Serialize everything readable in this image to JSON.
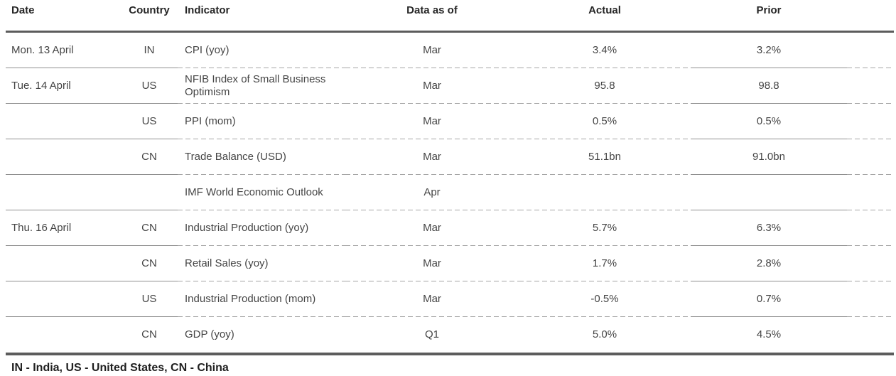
{
  "table": {
    "columns": [
      {
        "key": "date",
        "label": "Date"
      },
      {
        "key": "country",
        "label": "Country"
      },
      {
        "key": "indicator",
        "label": "Indicator"
      },
      {
        "key": "data_as_of",
        "label": "Data as of"
      },
      {
        "key": "actual",
        "label": "Actual"
      },
      {
        "key": "prior",
        "label": "Prior"
      }
    ],
    "rows": [
      {
        "date": "Mon. 13 April",
        "country": "IN",
        "indicator": "CPI (yoy)",
        "data_as_of": "Mar",
        "actual": "3.4%",
        "prior": "3.2%"
      },
      {
        "date": "Tue. 14 April",
        "country": "US",
        "indicator": "NFIB Index of Small Business Optimism",
        "data_as_of": "Mar",
        "actual": "95.8",
        "prior": "98.8"
      },
      {
        "date": "",
        "country": "US",
        "indicator": "PPI (mom)",
        "data_as_of": "Mar",
        "actual": "0.5%",
        "prior": "0.5%"
      },
      {
        "date": "",
        "country": "CN",
        "indicator": "Trade Balance (USD)",
        "data_as_of": "Mar",
        "actual": "51.1bn",
        "prior": "91.0bn"
      },
      {
        "date": "",
        "country": "",
        "indicator": "IMF World Economic Outlook",
        "data_as_of": "Apr",
        "actual": "",
        "prior": ""
      },
      {
        "date": "Thu. 16 April",
        "country": "CN",
        "indicator": "Industrial Production (yoy)",
        "data_as_of": "Mar",
        "actual": "5.7%",
        "prior": "6.3%"
      },
      {
        "date": "",
        "country": "CN",
        "indicator": "Retail Sales (yoy)",
        "data_as_of": "Mar",
        "actual": "1.7%",
        "prior": "2.8%"
      },
      {
        "date": "",
        "country": "US",
        "indicator": "Industrial Production (mom)",
        "data_as_of": "Mar",
        "actual": "-0.5%",
        "prior": "0.7%"
      },
      {
        "date": "",
        "country": "CN",
        "indicator": "GDP (yoy)",
        "data_as_of": "Q1",
        "actual": "5.0%",
        "prior": "4.5%"
      }
    ]
  },
  "footnote": "IN - India, US - United States, CN - China",
  "colors": {
    "rule_thick": "#5c5c5c",
    "rule_solid": "#8f8f8f",
    "rule_dashed": "#a5a5a5",
    "header_text": "#262626",
    "body_text": "#454545",
    "footnote_text": "#1f1f1f",
    "background": "#ffffff"
  }
}
